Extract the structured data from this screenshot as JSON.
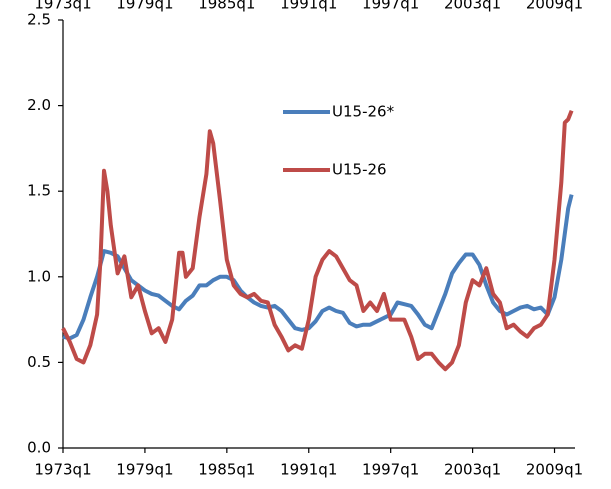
{
  "chart_data": {
    "type": "line",
    "series": [
      {
        "name": "U15-26*",
        "color": "#4a7ebb",
        "x": [
          1973,
          1973.5,
          1974,
          1974.5,
          1975,
          1975.5,
          1976,
          1976.5,
          1977,
          1977.5,
          1978,
          1978.5,
          1979,
          1979.5,
          1980,
          1980.5,
          1981,
          1981.5,
          1982,
          1982.5,
          1983,
          1983.5,
          1984,
          1984.5,
          1985,
          1985.5,
          1986,
          1986.5,
          1987,
          1987.5,
          1988,
          1988.5,
          1989,
          1989.5,
          1990,
          1990.5,
          1991,
          1991.5,
          1992,
          1992.5,
          1993,
          1993.5,
          1994,
          1994.5,
          1995,
          1995.5,
          1996,
          1996.5,
          1997,
          1997.5,
          1998,
          1998.5,
          1999,
          1999.5,
          2000,
          2000.5,
          2001,
          2001.5,
          2002,
          2002.5,
          2003,
          2003.5,
          2004,
          2004.5,
          2005,
          2005.5,
          2006,
          2006.5,
          2007,
          2007.5,
          2008,
          2008.5,
          2009,
          2009.5,
          2010,
          2010.25
        ],
        "values": [
          0.65,
          0.64,
          0.66,
          0.75,
          0.88,
          1.0,
          1.15,
          1.14,
          1.12,
          1.05,
          0.98,
          0.95,
          0.92,
          0.9,
          0.89,
          0.86,
          0.83,
          0.81,
          0.86,
          0.89,
          0.95,
          0.95,
          0.98,
          1.0,
          1.0,
          0.98,
          0.92,
          0.88,
          0.85,
          0.83,
          0.82,
          0.83,
          0.8,
          0.75,
          0.7,
          0.69,
          0.7,
          0.74,
          0.8,
          0.82,
          0.8,
          0.79,
          0.73,
          0.71,
          0.72,
          0.72,
          0.74,
          0.76,
          0.78,
          0.85,
          0.84,
          0.83,
          0.78,
          0.72,
          0.7,
          0.8,
          0.9,
          1.02,
          1.08,
          1.13,
          1.13,
          1.07,
          0.95,
          0.85,
          0.8,
          0.78,
          0.8,
          0.82,
          0.83,
          0.81,
          0.82,
          0.78,
          0.88,
          1.1,
          1.4,
          1.48
        ]
      },
      {
        "name": "U15-26",
        "color": "#be4b48",
        "x": [
          1973,
          1973.5,
          1974,
          1974.5,
          1975,
          1975.5,
          1975.75,
          1976,
          1976.25,
          1976.5,
          1977,
          1977.5,
          1978,
          1978.5,
          1979,
          1979.5,
          1980,
          1980.5,
          1981,
          1981.5,
          1981.75,
          1982,
          1982.5,
          1983,
          1983.5,
          1983.75,
          1984,
          1984.5,
          1985,
          1985.5,
          1986,
          1986.5,
          1987,
          1987.5,
          1988,
          1988.5,
          1989,
          1989.5,
          1990,
          1990.5,
          1991,
          1991.5,
          1992,
          1992.5,
          1993,
          1993.5,
          1994,
          1994.5,
          1995,
          1995.5,
          1996,
          1996.5,
          1997,
          1997.5,
          1998,
          1998.5,
          1999,
          1999.5,
          2000,
          2000.5,
          2001,
          2001.5,
          2002,
          2002.5,
          2003,
          2003.5,
          2004,
          2004.5,
          2005,
          2005.5,
          2006,
          2006.5,
          2007,
          2007.5,
          2008,
          2008.5,
          2009,
          2009.5,
          2009.75,
          2010,
          2010.25
        ],
        "values": [
          0.7,
          0.62,
          0.52,
          0.5,
          0.6,
          0.78,
          1.1,
          1.62,
          1.5,
          1.3,
          1.02,
          1.12,
          0.88,
          0.95,
          0.8,
          0.67,
          0.7,
          0.62,
          0.75,
          1.14,
          1.14,
          1.0,
          1.05,
          1.35,
          1.6,
          1.85,
          1.78,
          1.45,
          1.1,
          0.95,
          0.9,
          0.88,
          0.9,
          0.86,
          0.85,
          0.72,
          0.65,
          0.57,
          0.6,
          0.58,
          0.75,
          1.0,
          1.1,
          1.15,
          1.12,
          1.05,
          0.98,
          0.95,
          0.8,
          0.85,
          0.8,
          0.9,
          0.75,
          0.75,
          0.75,
          0.65,
          0.52,
          0.55,
          0.55,
          0.5,
          0.46,
          0.5,
          0.6,
          0.85,
          0.98,
          0.95,
          1.05,
          0.9,
          0.85,
          0.7,
          0.72,
          0.68,
          0.65,
          0.7,
          0.72,
          0.78,
          1.1,
          1.55,
          1.9,
          1.92,
          1.97
        ]
      }
    ],
    "xlim": [
      1973,
      2010.5
    ],
    "xticks": [
      {
        "value": 1973,
        "label": "1973q1"
      },
      {
        "value": 1979,
        "label": "1979q1"
      },
      {
        "value": 1985,
        "label": "1985q1"
      },
      {
        "value": 1991,
        "label": "1991q1"
      },
      {
        "value": 1997,
        "label": "1997q1"
      },
      {
        "value": 2003,
        "label": "2003q1"
      },
      {
        "value": 2009,
        "label": "2009q1"
      }
    ],
    "ylim": [
      0,
      2.5
    ],
    "yticks": [
      {
        "value": 0,
        "label": "0.0"
      },
      0.5,
      {
        "value": 1,
        "label": "1.0"
      },
      1.5,
      {
        "value": 2,
        "label": "2.0"
      },
      2.5
    ],
    "grid": false
  }
}
